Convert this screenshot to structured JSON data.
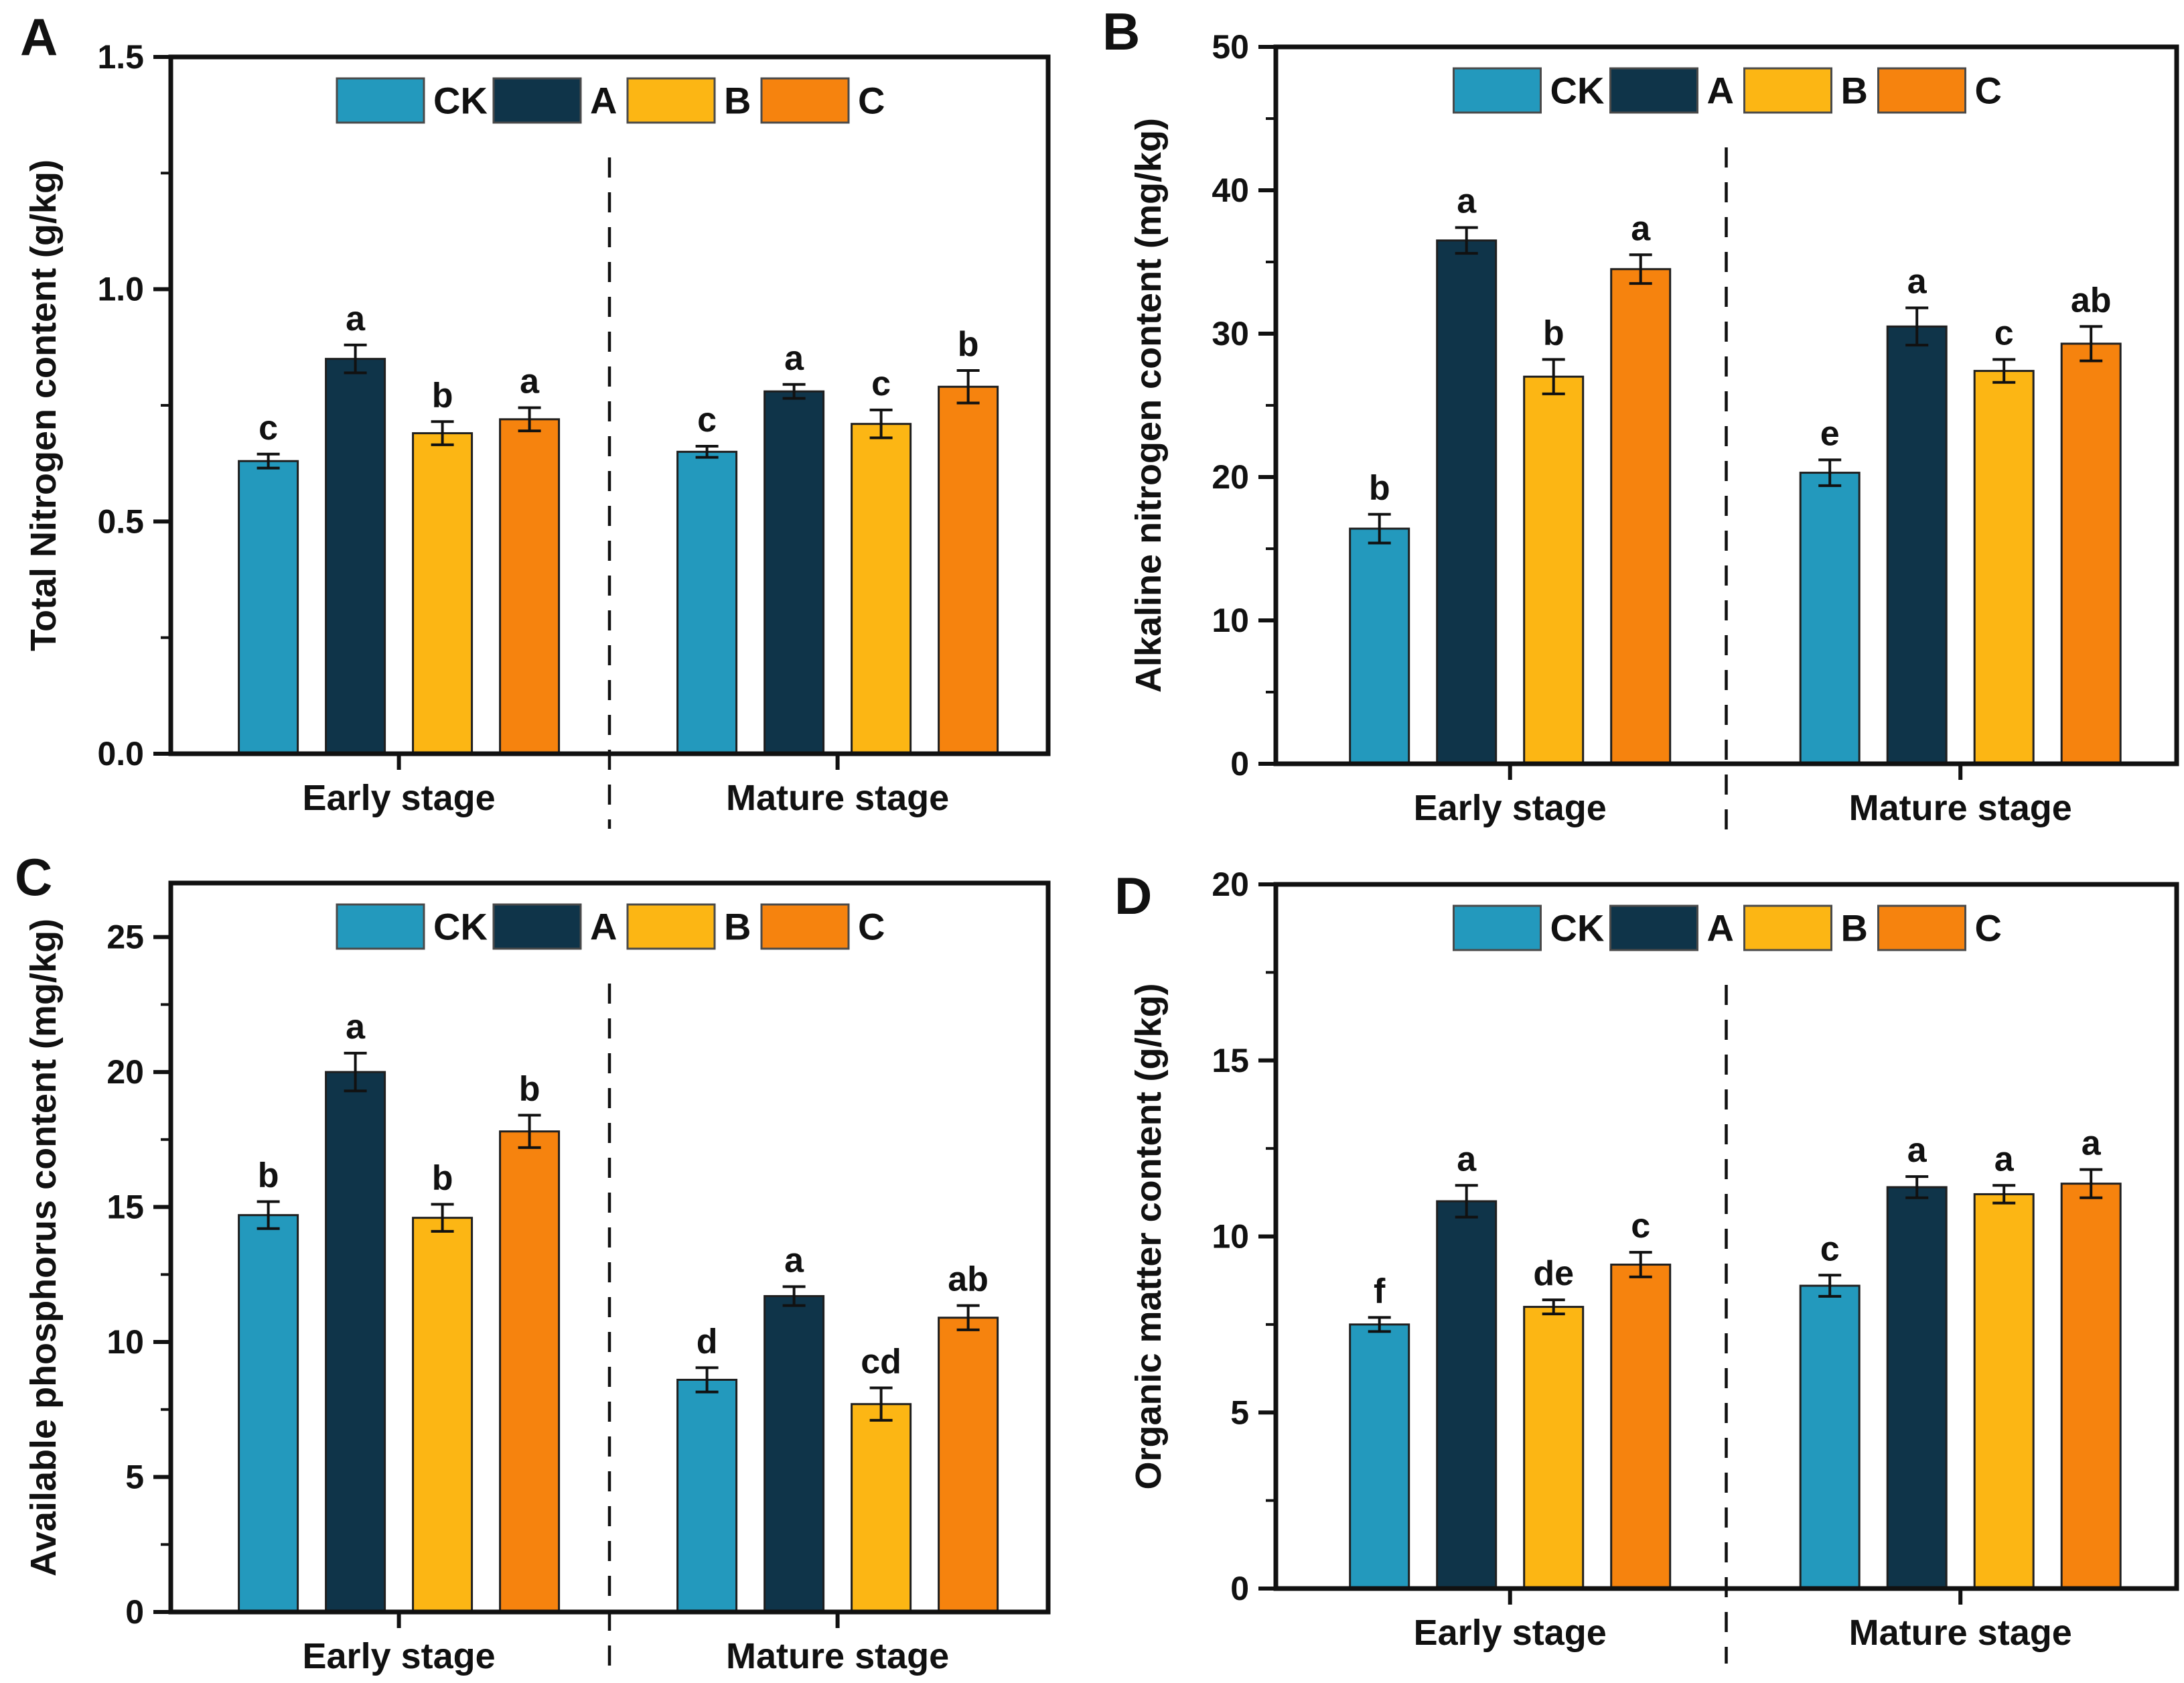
{
  "figure_background": "#ffffff",
  "series_colors": {
    "CK": "#2399BD",
    "A": "#0F3449",
    "B": "#FCB614",
    "C": "#F6830E"
  },
  "chart_data": [
    {
      "type": "bar",
      "panel": "A",
      "ylabel": "Total Nitrogen content (g/kg)",
      "xlabel": "",
      "categories": [
        "Early stage",
        "Mature stage"
      ],
      "ylim": [
        0,
        1.5
      ],
      "yticks": [
        "0.0",
        "0.5",
        "1.0",
        "1.5"
      ],
      "yminor_step": 0.25,
      "grid": false,
      "legend_position": "top-center-inside",
      "group_divider": "dashed",
      "series": [
        {
          "name": "CK",
          "color": "#2399BD",
          "values": [
            0.63,
            0.65
          ],
          "errors": [
            0.015,
            0.012
          ],
          "sig_letters": [
            "c",
            "c"
          ]
        },
        {
          "name": "A",
          "color": "#0F3449",
          "values": [
            0.85,
            0.78
          ],
          "errors": [
            0.03,
            0.015
          ],
          "sig_letters": [
            "a",
            "a"
          ]
        },
        {
          "name": "B",
          "color": "#FCB614",
          "values": [
            0.69,
            0.71
          ],
          "errors": [
            0.025,
            0.03
          ],
          "sig_letters": [
            "b",
            "c"
          ]
        },
        {
          "name": "C",
          "color": "#F6830E",
          "values": [
            0.72,
            0.79
          ],
          "errors": [
            0.025,
            0.035
          ],
          "sig_letters": [
            "a",
            "b"
          ]
        }
      ]
    },
    {
      "type": "bar",
      "panel": "B",
      "ylabel": "Alkaline nitrogen content (mg/kg)",
      "xlabel": "",
      "categories": [
        "Early stage",
        "Mature stage"
      ],
      "ylim": [
        0,
        50
      ],
      "yticks": [
        "0",
        "10",
        "20",
        "30",
        "40",
        "50"
      ],
      "yminor_step": 5,
      "grid": false,
      "legend_position": "top-center-inside",
      "group_divider": "dashed",
      "series": [
        {
          "name": "CK",
          "color": "#2399BD",
          "values": [
            16.4,
            20.3
          ],
          "errors": [
            1.0,
            0.9
          ],
          "sig_letters": [
            "b",
            "e"
          ]
        },
        {
          "name": "A",
          "color": "#0F3449",
          "values": [
            36.5,
            30.5
          ],
          "errors": [
            0.9,
            1.3
          ],
          "sig_letters": [
            "a",
            "a"
          ]
        },
        {
          "name": "B",
          "color": "#FCB614",
          "values": [
            27.0,
            27.4
          ],
          "errors": [
            1.2,
            0.8
          ],
          "sig_letters": [
            "b",
            "c"
          ]
        },
        {
          "name": "C",
          "color": "#F6830E",
          "values": [
            34.5,
            29.3
          ],
          "errors": [
            1.0,
            1.2
          ],
          "sig_letters": [
            "a",
            "ab"
          ]
        }
      ]
    },
    {
      "type": "bar",
      "panel": "C",
      "ylabel": "Available phosphorus content (mg/kg)",
      "xlabel": "",
      "categories": [
        "Early stage",
        "Mature stage"
      ],
      "ylim": [
        0,
        27
      ],
      "yticks": [
        "0",
        "5",
        "10",
        "15",
        "20",
        "25"
      ],
      "yminor_step": 2.5,
      "grid": false,
      "legend_position": "top-center-inside",
      "group_divider": "dashed",
      "series": [
        {
          "name": "CK",
          "color": "#2399BD",
          "values": [
            14.7,
            8.6
          ],
          "errors": [
            0.5,
            0.45
          ],
          "sig_letters": [
            "b",
            "d"
          ]
        },
        {
          "name": "A",
          "color": "#0F3449",
          "values": [
            20.0,
            11.7
          ],
          "errors": [
            0.7,
            0.35
          ],
          "sig_letters": [
            "a",
            "a"
          ]
        },
        {
          "name": "B",
          "color": "#FCB614",
          "values": [
            14.6,
            7.7
          ],
          "errors": [
            0.5,
            0.6
          ],
          "sig_letters": [
            "b",
            "cd"
          ]
        },
        {
          "name": "C",
          "color": "#F6830E",
          "values": [
            17.8,
            10.9
          ],
          "errors": [
            0.6,
            0.45
          ],
          "sig_letters": [
            "b",
            "ab"
          ]
        }
      ]
    },
    {
      "type": "bar",
      "panel": "D",
      "ylabel": "Organic matter content (g/kg)",
      "xlabel": "",
      "categories": [
        "Early stage",
        "Mature stage"
      ],
      "ylim": [
        0,
        20
      ],
      "yticks": [
        "0",
        "5",
        "10",
        "15",
        "20"
      ],
      "yminor_step": 2.5,
      "grid": false,
      "legend_position": "top-center-inside",
      "group_divider": "dashed",
      "series": [
        {
          "name": "CK",
          "color": "#2399BD",
          "values": [
            7.5,
            8.6
          ],
          "errors": [
            0.2,
            0.3
          ],
          "sig_letters": [
            "f",
            "c"
          ]
        },
        {
          "name": "A",
          "color": "#0F3449",
          "values": [
            11.0,
            11.4
          ],
          "errors": [
            0.45,
            0.3
          ],
          "sig_letters": [
            "a",
            "a"
          ]
        },
        {
          "name": "B",
          "color": "#FCB614",
          "values": [
            8.0,
            11.2
          ],
          "errors": [
            0.2,
            0.25
          ],
          "sig_letters": [
            "de",
            "a"
          ]
        },
        {
          "name": "C",
          "color": "#F6830E",
          "values": [
            9.2,
            11.5
          ],
          "errors": [
            0.35,
            0.4
          ],
          "sig_letters": [
            "c",
            "a"
          ]
        }
      ]
    }
  ]
}
